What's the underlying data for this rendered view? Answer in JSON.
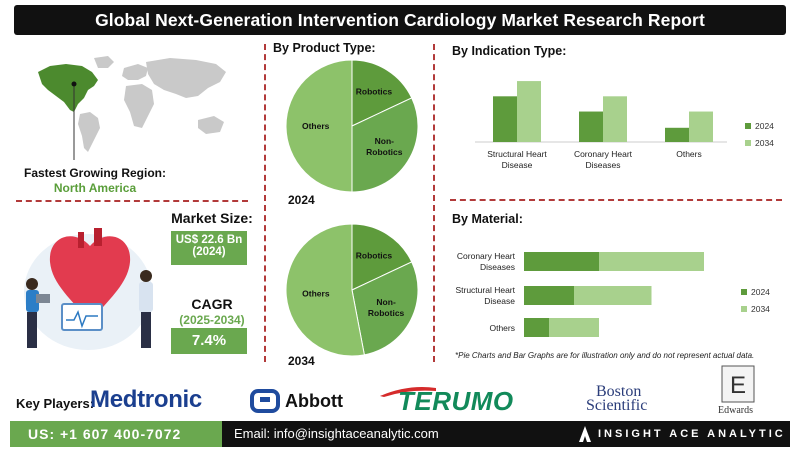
{
  "header": {
    "title": "Global Next-Generation Intervention Cardiology Market Research Report"
  },
  "region": {
    "label": "Fastest Growing Region:",
    "value": "North America"
  },
  "market_size": {
    "label": "Market Size:",
    "value": "US$ 22.6 Bn",
    "year": "(2024)"
  },
  "cagr": {
    "label": "CAGR",
    "years": "(2025-2034)",
    "value": "7.4%"
  },
  "product_section": {
    "title": "By Product Type:",
    "year_2024": "2024",
    "year_2034": "2034"
  },
  "indication_section": {
    "title": "By  Indication Type:"
  },
  "material_section": {
    "title": "By Material:"
  },
  "footnote": "*Pie Charts and Bar Graphs are for illustration only and do not represent actual data.",
  "key_players": {
    "label": "Key Players:",
    "medtronic": "Medtronic",
    "abbott": "Abbott",
    "terumo": "TERUMO",
    "boston_line1": "Boston",
    "boston_line2": "Scientific",
    "edwards": "Edwards"
  },
  "footer": {
    "phone": "US: +1 607 400-7072",
    "email": "Email: info@insightaceanalytic.com",
    "brand": "INSIGHT ACE ANALYTIC"
  },
  "colors": {
    "dark_green": "#5e9b3c",
    "light_green": "#a8d18d",
    "accent_green": "#6aa84f",
    "divider_red": "#b23a3a"
  },
  "chart_data": [
    {
      "id": "product_2024",
      "type": "pie",
      "slices": [
        {
          "label": "Robotics",
          "value": 18,
          "color": "#5e9b3c"
        },
        {
          "label": "Non-Robotics",
          "value": 32,
          "color": "#6aa84f"
        },
        {
          "label": "Others",
          "value": 50,
          "color": "#8dc26a"
        }
      ]
    },
    {
      "id": "product_2034",
      "type": "pie",
      "slices": [
        {
          "label": "Robotics",
          "value": 18,
          "color": "#5e9b3c"
        },
        {
          "label": "Non-Robotics",
          "value": 29,
          "color": "#6aa84f"
        },
        {
          "label": "Others",
          "value": 53,
          "color": "#8dc26a"
        }
      ]
    },
    {
      "id": "indication",
      "type": "bar",
      "categories": [
        "Structural Heart Disease",
        "Coronary Heart Diseases",
        "Others"
      ],
      "category_lines": [
        [
          "Structural Heart",
          "Disease"
        ],
        [
          "Coronary Heart",
          "Diseases"
        ],
        [
          "Others"
        ]
      ],
      "series": [
        {
          "name": "2024",
          "values": [
            45,
            30,
            14
          ],
          "color": "#5e9b3c"
        },
        {
          "name": "2034",
          "values": [
            60,
            45,
            30
          ],
          "color": "#a8d18d"
        }
      ],
      "ylim": [
        0,
        65
      ]
    },
    {
      "id": "material",
      "type": "bar",
      "orientation": "horizontal",
      "categories": [
        "Coronary Heart Diseases",
        "Structural Heart Disease",
        "Others"
      ],
      "category_lines": [
        [
          "Coronary Heart",
          "Diseases"
        ],
        [
          "Structural Heart",
          "Disease"
        ],
        [
          "Others"
        ]
      ],
      "series": [
        {
          "name": "2024",
          "values": [
            30,
            20,
            10
          ],
          "color": "#5e9b3c"
        },
        {
          "name": "2034",
          "values": [
            42,
            31,
            20
          ],
          "color": "#a8d18d"
        }
      ],
      "stacked": true,
      "xlim": [
        0,
        80
      ]
    }
  ]
}
